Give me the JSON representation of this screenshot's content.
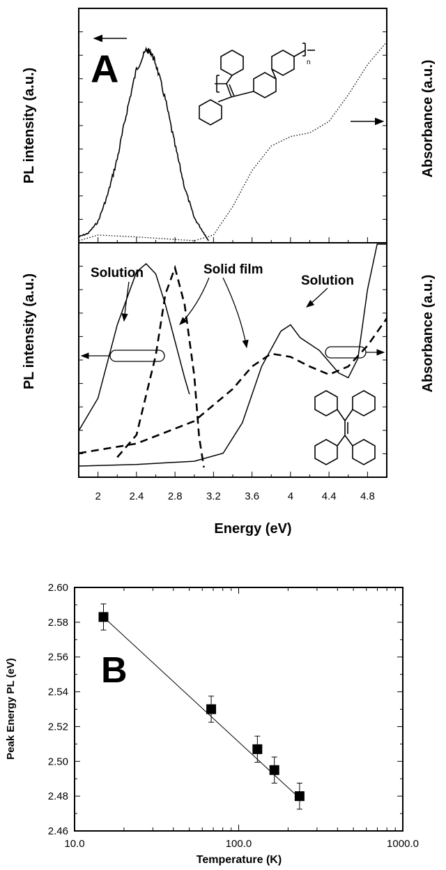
{
  "chart_data": [
    {
      "type": "line",
      "panel_label": "A",
      "ylabel_left": "PL intensity (a.u.)",
      "ylabel_right": "Absorbance (a.u.)",
      "xlim": [
        1.8,
        5.0
      ],
      "series": [
        {
          "name": "",
          "style": "solid-noisy",
          "axis": "left",
          "x": [
            1.8,
            1.9,
            2.0,
            2.1,
            2.2,
            2.3,
            2.4,
            2.5,
            2.55,
            2.6,
            2.7,
            2.8,
            2.9,
            3.0,
            3.1,
            3.15
          ],
          "y": [
            0.02,
            0.04,
            0.1,
            0.24,
            0.43,
            0.68,
            0.9,
            1.0,
            0.99,
            0.93,
            0.74,
            0.5,
            0.28,
            0.12,
            0.04,
            0.0
          ]
        },
        {
          "name": "",
          "style": "dotted",
          "axis": "right",
          "x": [
            1.8,
            2.0,
            2.4,
            3.0,
            3.2,
            3.4,
            3.6,
            3.8,
            4.0,
            4.2,
            4.4,
            4.6,
            4.8,
            5.0
          ],
          "y": [
            0.0,
            0.03,
            0.02,
            0.0,
            0.03,
            0.18,
            0.37,
            0.5,
            0.55,
            0.57,
            0.63,
            0.77,
            0.93,
            1.05
          ]
        }
      ]
    },
    {
      "type": "line",
      "xlabel": "Energy (eV)",
      "ylabel_left": "PL intensity (a.u.)",
      "ylabel_right": "Absorbance (a.u.)",
      "xlim": [
        1.8,
        5.0
      ],
      "x_ticks": [
        "2",
        "2.4",
        "2.8",
        "3.2",
        "3.6",
        "4",
        "4.4",
        "4.8"
      ],
      "annotations": [
        "Solution",
        "Solid film",
        "Solution"
      ],
      "series": [
        {
          "name": "",
          "style": "solid",
          "role": "solution PL",
          "axis": "left",
          "x": [
            1.8,
            2.0,
            2.2,
            2.4,
            2.5,
            2.6,
            2.7,
            2.8,
            2.9,
            2.95
          ],
          "y": [
            0.18,
            0.34,
            0.7,
            0.96,
            1.0,
            0.95,
            0.8,
            0.62,
            0.44,
            0.36
          ]
        },
        {
          "name": "",
          "style": "dashed",
          "role": "solid film PL",
          "axis": "left",
          "x": [
            2.2,
            2.4,
            2.6,
            2.7,
            2.8,
            2.9,
            3.0,
            3.05,
            3.1
          ],
          "y": [
            0.05,
            0.16,
            0.55,
            0.85,
            0.98,
            0.8,
            0.45,
            0.15,
            0.0
          ]
        },
        {
          "name": "",
          "style": "solid",
          "role": "solution absorbance",
          "axis": "right",
          "x": [
            1.8,
            2.4,
            3.0,
            3.3,
            3.5,
            3.7,
            3.9,
            4.0,
            4.1,
            4.3,
            4.5,
            4.6,
            4.7,
            4.8,
            4.9,
            5.0
          ],
          "y": [
            0.0,
            0.01,
            0.03,
            0.08,
            0.27,
            0.62,
            0.84,
            0.88,
            0.8,
            0.72,
            0.58,
            0.55,
            0.67,
            1.1,
            1.6,
            2.1
          ]
        },
        {
          "name": "",
          "style": "dashed",
          "role": "solid film absorbance",
          "axis": "right",
          "x": [
            1.8,
            2.4,
            3.0,
            3.4,
            3.6,
            3.8,
            4.0,
            4.2,
            4.4,
            4.6,
            4.8,
            5.0
          ],
          "y": [
            0.08,
            0.14,
            0.28,
            0.48,
            0.62,
            0.7,
            0.68,
            0.62,
            0.57,
            0.62,
            0.75,
            0.92
          ]
        }
      ]
    },
    {
      "type": "scatter",
      "panel_label": "B",
      "xlabel": "Temperature (K)",
      "ylabel": "Peak Energy PL (eV)",
      "xscale": "log",
      "xlim": [
        10,
        1000
      ],
      "ylim": [
        2.46,
        2.6
      ],
      "x_ticks": [
        "10.0",
        "100.0",
        "1000.0"
      ],
      "y_ticks": [
        "2.46",
        "2.48",
        "2.50",
        "2.52",
        "2.54",
        "2.56",
        "2.58",
        "2.60"
      ],
      "points": [
        {
          "x": 15,
          "y": 2.583,
          "err": 0.0075
        },
        {
          "x": 68,
          "y": 2.53,
          "err": 0.0075
        },
        {
          "x": 130,
          "y": 2.507,
          "err": 0.0075
        },
        {
          "x": 165,
          "y": 2.495,
          "err": 0.0075
        },
        {
          "x": 235,
          "y": 2.48,
          "err": 0.0075
        }
      ],
      "fit_line": {
        "x": [
          15,
          240
        ],
        "y": [
          2.583,
          2.478
        ]
      }
    }
  ]
}
